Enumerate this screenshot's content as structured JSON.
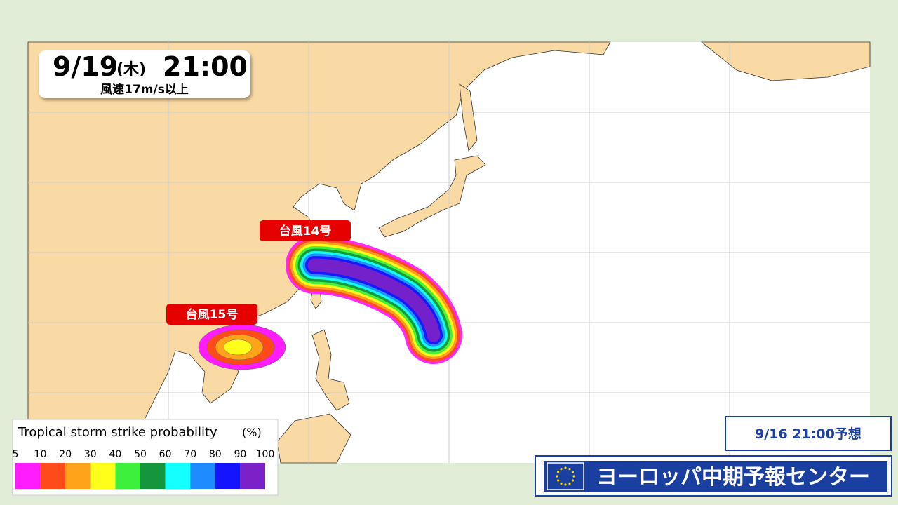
{
  "header": {
    "date": "9/19",
    "weekday": "(木)",
    "time": "21:00",
    "subtitle": "風速17m/s以上"
  },
  "labels": [
    {
      "text": "台風14号"
    },
    {
      "text": "台風15号"
    }
  ],
  "legend": {
    "title": "Tropical storm strike probability",
    "unit": "(%)",
    "ticks": [
      5,
      10,
      20,
      30,
      40,
      50,
      60,
      70,
      80,
      90,
      100
    ],
    "colors": [
      "#ff1cff",
      "#ff4a1a",
      "#ffa31a",
      "#ffff1a",
      "#3cf03c",
      "#14963c",
      "#14ffff",
      "#1e8cff",
      "#1414ff",
      "#7a22c8"
    ]
  },
  "footer": {
    "issued": "9/16 21:00予想",
    "source": "ヨーロッパ中期予報センター"
  }
}
